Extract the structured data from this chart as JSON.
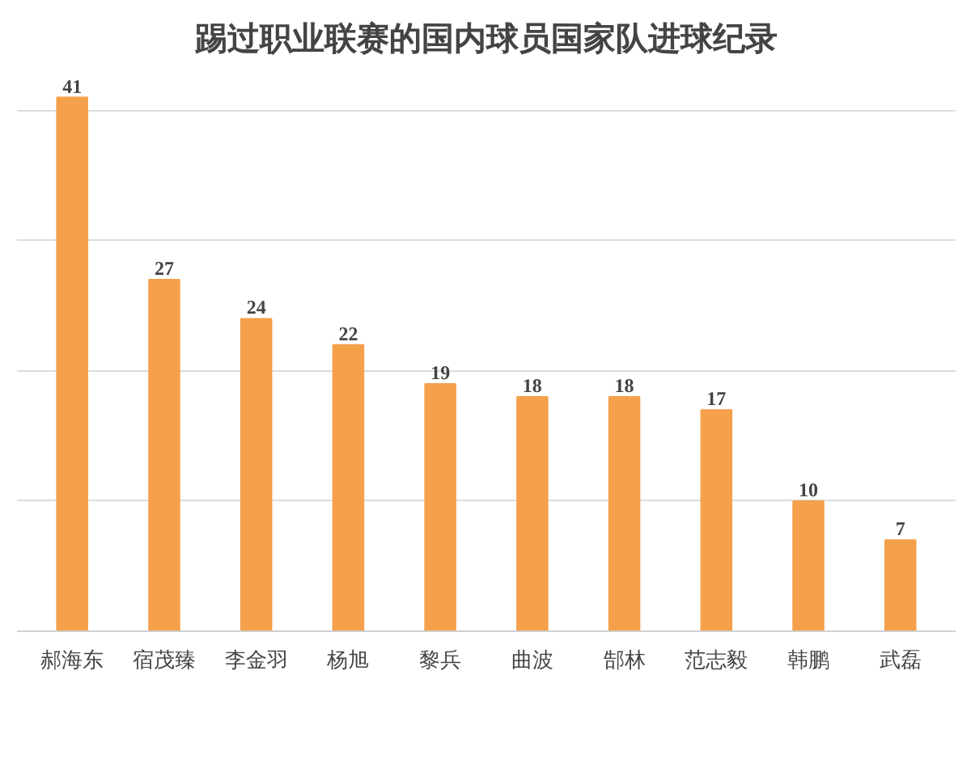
{
  "chart_data": {
    "type": "bar",
    "title": "踢过职业联赛的国内球员国家队进球纪录",
    "categories": [
      "郝海东",
      "宿茂臻",
      "李金羽",
      "杨旭",
      "黎兵",
      "曲波",
      "郜林",
      "范志毅",
      "韩鹏",
      "武磊"
    ],
    "values": [
      41,
      27,
      24,
      22,
      19,
      18,
      18,
      17,
      10,
      7
    ],
    "color": "#f5a04a",
    "grid": "y",
    "data_labels": true,
    "tick_labels": "x"
  }
}
